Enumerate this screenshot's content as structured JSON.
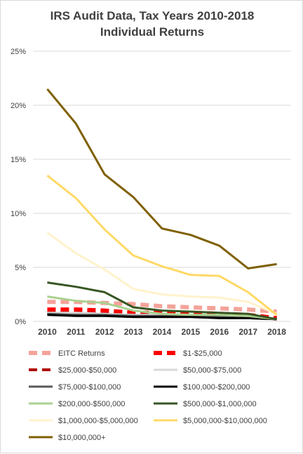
{
  "chart_data": {
    "type": "line",
    "title": [
      "IRS Audit Data, Tax Years 2010-2018",
      "Individual Returns"
    ],
    "xlabel": "",
    "ylabel": "",
    "x": [
      "2010",
      "2011",
      "2012",
      "2013",
      "2014",
      "2015",
      "2016",
      "2017",
      "2018"
    ],
    "ylim": [
      0,
      25
    ],
    "yticks": [
      "0%",
      "5%",
      "10%",
      "15%",
      "20%",
      "25%"
    ],
    "grid": true,
    "legend_position": "bottom",
    "series": [
      {
        "name": "EITC Returns",
        "color": "#f4a39a",
        "dash": "12,7",
        "width": 6,
        "values": [
          1.8,
          1.8,
          1.7,
          1.6,
          1.4,
          1.3,
          1.2,
          1.1,
          0.9
        ]
      },
      {
        "name": "$1-$25,000",
        "color": "#ff0000",
        "dash": "12,7",
        "width": 6,
        "values": [
          1.1,
          1.1,
          1.0,
          0.8,
          0.8,
          0.8,
          0.7,
          0.6,
          0.3
        ]
      },
      {
        "name": "$25,000-$50,000",
        "color": "#b00000",
        "dash": "12,7",
        "width": 4,
        "values": [
          0.8,
          0.8,
          0.7,
          0.6,
          0.6,
          0.6,
          0.5,
          0.4,
          0.2
        ]
      },
      {
        "name": "$50,000-$75,000",
        "color": "#d9d9d9",
        "dash": "",
        "width": 3,
        "values": [
          0.8,
          0.8,
          0.7,
          0.6,
          0.6,
          0.5,
          0.5,
          0.4,
          0.2
        ]
      },
      {
        "name": "$75,000-$100,000",
        "color": "#595959",
        "dash": "",
        "width": 3,
        "values": [
          0.7,
          0.6,
          0.6,
          0.5,
          0.5,
          0.5,
          0.4,
          0.3,
          0.2
        ]
      },
      {
        "name": "$100,000-$200,000",
        "color": "#000000",
        "dash": "",
        "width": 3,
        "values": [
          0.6,
          0.5,
          0.5,
          0.4,
          0.4,
          0.4,
          0.3,
          0.3,
          0.2
        ]
      },
      {
        "name": "$200,000-$500,000",
        "color": "#a9d18e",
        "dash": "",
        "width": 3,
        "values": [
          2.3,
          1.9,
          1.7,
          1.0,
          0.7,
          0.6,
          0.6,
          0.5,
          0.2
        ]
      },
      {
        "name": "$500,000-$1,000,000",
        "color": "#375623",
        "dash": "",
        "width": 3,
        "values": [
          3.6,
          3.2,
          2.7,
          1.3,
          1.0,
          0.9,
          0.8,
          0.7,
          0.2
        ]
      },
      {
        "name": "$1,000,000-$5,000,000",
        "color": "#fff2cc",
        "dash": "",
        "width": 3,
        "values": [
          8.2,
          6.3,
          4.8,
          3.0,
          2.5,
          2.3,
          2.2,
          1.8,
          0.7
        ]
      },
      {
        "name": "$5,000,000-$10,000,000",
        "color": "#ffd966",
        "dash": "",
        "width": 3,
        "values": [
          13.5,
          11.4,
          8.5,
          6.1,
          5.1,
          4.3,
          4.2,
          2.7,
          0.6
        ]
      },
      {
        "name": "$10,000,000+",
        "color": "#7f6000",
        "dash": "",
        "width": 3,
        "values": [
          21.5,
          18.3,
          13.6,
          11.5,
          8.6,
          8.0,
          7.0,
          4.9,
          5.3
        ]
      }
    ]
  }
}
